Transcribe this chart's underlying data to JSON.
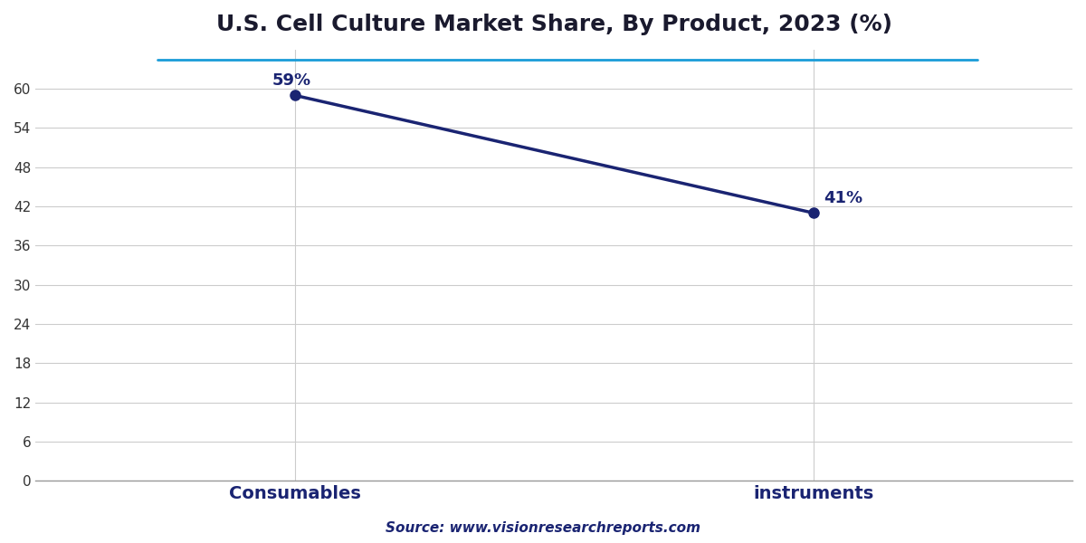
{
  "title": "U.S. Cell Culture Market Share, By Product, 2023 (%)",
  "categories": [
    "Consumables",
    "instruments"
  ],
  "values": [
    59,
    41
  ],
  "line_color": "#1a2472",
  "marker_color": "#1a2472",
  "annotation_color": "#1a2472",
  "ylim": [
    0,
    66
  ],
  "yticks": [
    0,
    6,
    12,
    18,
    24,
    30,
    36,
    42,
    48,
    54,
    60
  ],
  "grid_color": "#cccccc",
  "background_color": "#ffffff",
  "title_color": "#1a1a2e",
  "source_text": "Source: www.visionresearchreports.com",
  "source_color": "#1a2472",
  "title_fontsize": 18,
  "label_fontsize": 14,
  "annotation_fontsize": 13,
  "source_fontsize": 11,
  "top_line_color": "#1a9cd8",
  "marker_size": 8,
  "line_width": 2.5
}
